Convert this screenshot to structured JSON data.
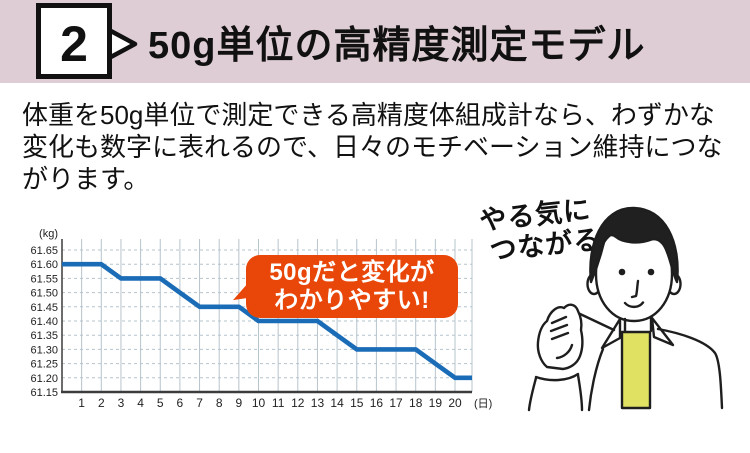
{
  "header": {
    "number": "2",
    "title": "50g単位の高精度測定モデル",
    "band_color": "#decdd4"
  },
  "body": {
    "paragraph": "体重を50g単位で測定できる高精度体組成計なら、わずかな変化も数字に表れるので、日々のモチベーション維持につながります。"
  },
  "chart_data": {
    "type": "line",
    "title": "",
    "ylabel_unit": "(kg)",
    "xlabel_unit": "(日)",
    "x": [
      1,
      2,
      3,
      4,
      5,
      6,
      7,
      8,
      9,
      10,
      11,
      12,
      13,
      14,
      15,
      16,
      17,
      18,
      19,
      20
    ],
    "values": [
      61.6,
      61.6,
      61.55,
      61.55,
      61.55,
      61.5,
      61.45,
      61.45,
      61.45,
      61.4,
      61.4,
      61.4,
      61.4,
      61.35,
      61.3,
      61.3,
      61.3,
      61.3,
      61.25,
      61.2
    ],
    "y_ticks": [
      61.65,
      61.6,
      61.55,
      61.5,
      61.45,
      61.4,
      61.35,
      61.3,
      61.25,
      61.2,
      61.15
    ],
    "ylim": [
      61.15,
      61.69
    ],
    "xlim": [
      0,
      20.9
    ],
    "grid": true,
    "legend": "none",
    "line_color": "#1b6cb7",
    "grid_color": "#b6c4cd",
    "axis_color": "#3c3c3c",
    "extends_to_left_axis": true,
    "extends_past_last_day": true
  },
  "annotations": {
    "bubble": {
      "line1": "50gだと変化が",
      "line2": "わかりやすい!",
      "bg_color": "#e94709",
      "text_color": "#ffffff"
    },
    "motivation": {
      "line1": "やる気に",
      "line2": "つながる!"
    }
  },
  "illustration": {
    "name": "man-raising-fist",
    "hair_color": "#202020",
    "outline_color": "#1e1e1e",
    "shirt_color": "#ffffff",
    "undershirt_color": "#e0e163"
  }
}
